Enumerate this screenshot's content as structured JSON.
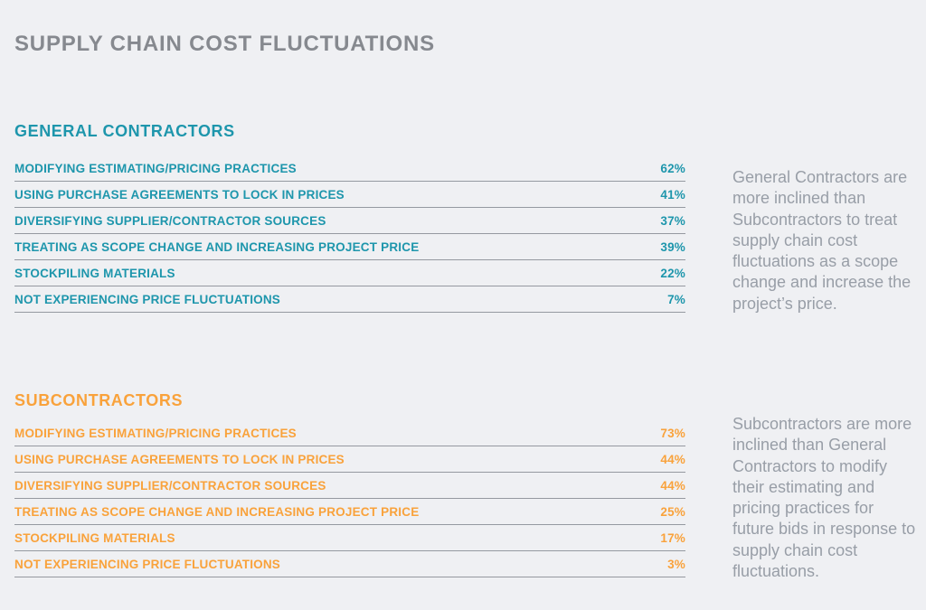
{
  "page_title": "SUPPLY CHAIN COST FLUCTUATIONS",
  "colors": {
    "background": "#eff0f3",
    "general_contractors_accent": "#1e96ac",
    "subcontractors_accent": "#f9a23b",
    "title_gray": "#86898f",
    "note_gray": "#989ea7",
    "divider_gray": "#9599a0"
  },
  "sections": [
    {
      "heading": "GENERAL CONTRACTORS",
      "rows": [
        {
          "label": "MODIFYING ESTIMATING/PRICING PRACTICES",
          "value": "62%"
        },
        {
          "label": "USING PURCHASE AGREEMENTS TO LOCK IN PRICES",
          "value": "41%"
        },
        {
          "label": "DIVERSIFYING SUPPLIER/CONTRACTOR SOURCES",
          "value": "37%"
        },
        {
          "label": "TREATING AS SCOPE CHANGE AND INCREASING PROJECT PRICE",
          "value": "39%"
        },
        {
          "label": "STOCKPILING MATERIALS",
          "value": "22%"
        },
        {
          "label": "NOT EXPERIENCING PRICE FLUCTUATIONS",
          "value": "7%"
        }
      ],
      "note": "General Contractors are more inclined than Subcontractors to treat supply chain cost fluctuations as a scope change and increase the project’s price."
    },
    {
      "heading": "SUBCONTRACTORS",
      "rows": [
        {
          "label": "MODIFYING ESTIMATING/PRICING PRACTICES",
          "value": "73%"
        },
        {
          "label": "USING PURCHASE AGREEMENTS TO LOCK IN PRICES",
          "value": "44%"
        },
        {
          "label": "DIVERSIFYING SUPPLIER/CONTRACTOR SOURCES",
          "value": "44%"
        },
        {
          "label": "TREATING AS SCOPE CHANGE AND INCREASING PROJECT PRICE",
          "value": "25%"
        },
        {
          "label": "STOCKPILING MATERIALS",
          "value": "17%"
        },
        {
          "label": "NOT EXPERIENCING PRICE FLUCTUATIONS",
          "value": "3%"
        }
      ],
      "note": "Subcontractors are more inclined than General Contractors to modify their estimating and pricing practices for future bids in response to supply chain cost fluctuations."
    }
  ],
  "chart_data": [
    {
      "type": "table",
      "title": "GENERAL CONTRACTORS",
      "categories": [
        "MODIFYING ESTIMATING/PRICING PRACTICES",
        "USING PURCHASE AGREEMENTS TO LOCK IN PRICES",
        "DIVERSIFYING SUPPLIER/CONTRACTOR SOURCES",
        "TREATING AS SCOPE CHANGE AND INCREASING PROJECT PRICE",
        "STOCKPILING MATERIALS",
        "NOT EXPERIENCING PRICE FLUCTUATIONS"
      ],
      "values": [
        62,
        41,
        37,
        39,
        22,
        7
      ],
      "unit": "%",
      "accent_color": "#1e96ac",
      "annotation": "General Contractors are more inclined than Subcontractors to treat supply chain cost fluctuations as a scope change and increase the project’s price."
    },
    {
      "type": "table",
      "title": "SUBCONTRACTORS",
      "categories": [
        "MODIFYING ESTIMATING/PRICING PRACTICES",
        "USING PURCHASE AGREEMENTS TO LOCK IN PRICES",
        "DIVERSIFYING SUPPLIER/CONTRACTOR SOURCES",
        "TREATING AS SCOPE CHANGE AND INCREASING PROJECT PRICE",
        "STOCKPILING MATERIALS",
        "NOT EXPERIENCING PRICE FLUCTUATIONS"
      ],
      "values": [
        73,
        44,
        44,
        25,
        17,
        3
      ],
      "unit": "%",
      "accent_color": "#f9a23b",
      "annotation": "Subcontractors are more inclined than General Contractors to modify their estimating and pricing practices for future bids in response to supply chain cost fluctuations."
    }
  ]
}
